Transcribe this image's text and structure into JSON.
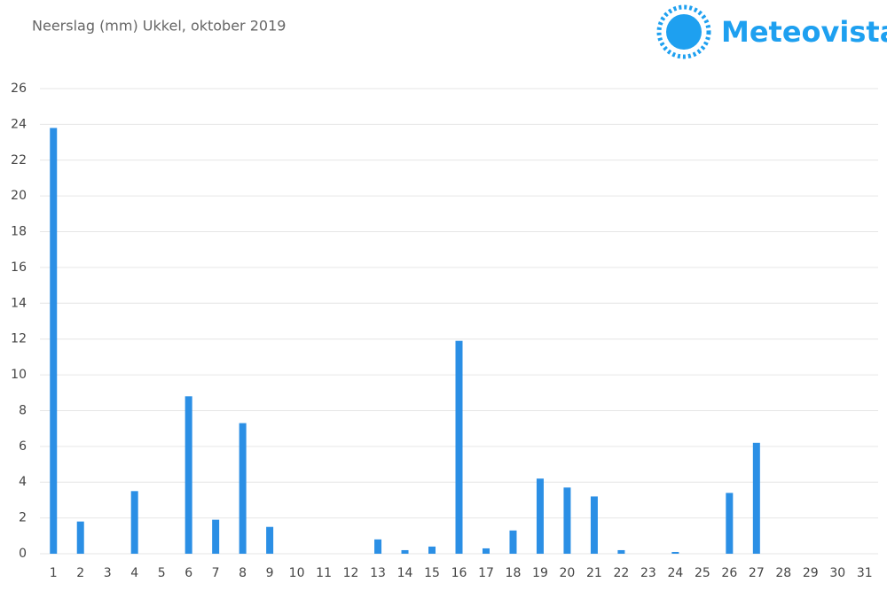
{
  "chart_data": {
    "type": "bar",
    "title": "Neerslag (mm) Ukkel, oktober 2019",
    "brand": "Meteovista",
    "categories": [
      "1",
      "2",
      "3",
      "4",
      "5",
      "6",
      "7",
      "8",
      "9",
      "10",
      "11",
      "12",
      "13",
      "14",
      "15",
      "16",
      "17",
      "18",
      "19",
      "20",
      "21",
      "22",
      "23",
      "24",
      "25",
      "26",
      "27",
      "28",
      "29",
      "30",
      "31"
    ],
    "values": [
      23.8,
      1.8,
      0,
      3.5,
      0,
      8.8,
      1.9,
      7.3,
      1.5,
      0,
      0,
      0,
      0.8,
      0.2,
      0.4,
      11.9,
      0.3,
      1.3,
      4.2,
      3.7,
      3.2,
      0.2,
      0,
      0.1,
      0,
      3.4,
      6.2,
      0,
      0,
      0,
      0
    ],
    "color": "#2b8fe5",
    "ylim": [
      0,
      26
    ],
    "yticks": [
      0,
      2,
      4,
      6,
      8,
      10,
      12,
      14,
      16,
      18,
      20,
      22,
      24,
      26
    ],
    "grid": true
  }
}
